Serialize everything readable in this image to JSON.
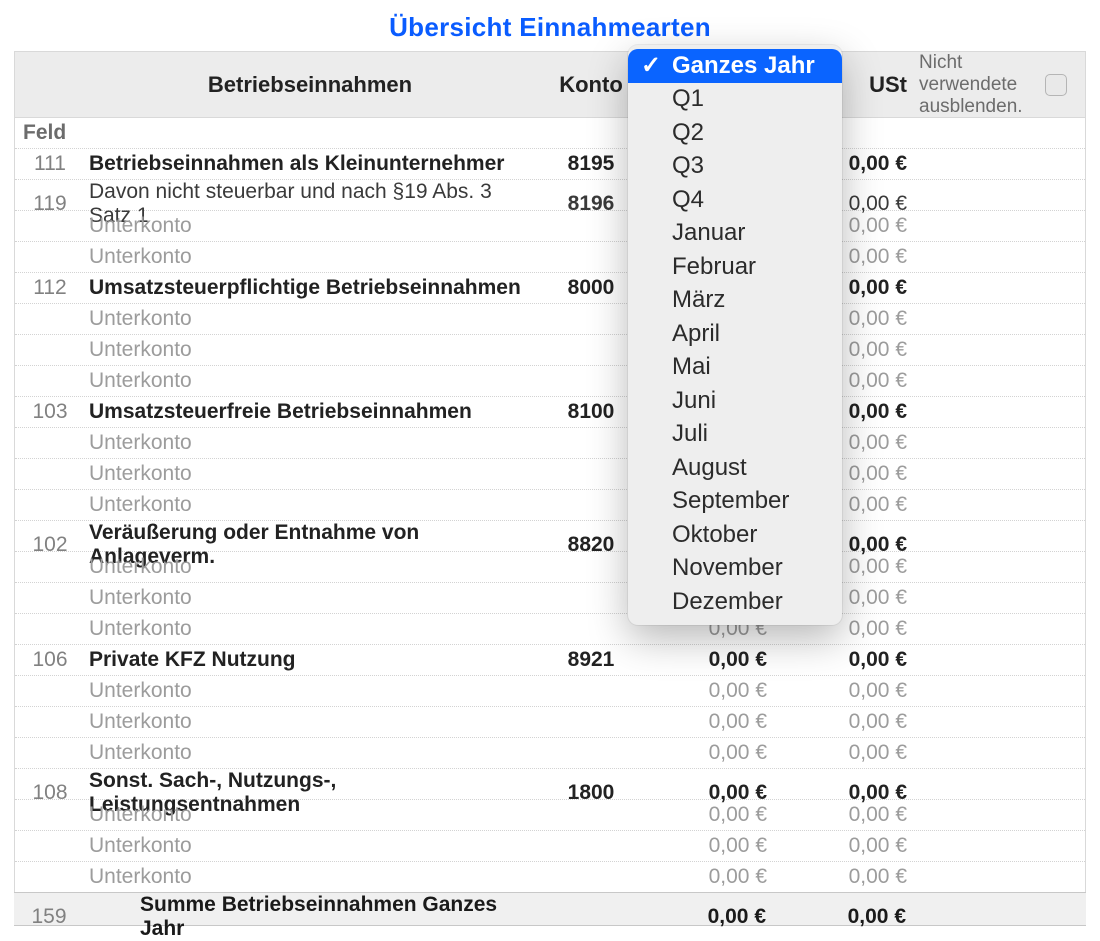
{
  "title": "Übersicht Einnahmearten",
  "header": {
    "label": "Betriebseinnahmen",
    "account": "Konto",
    "ust": "USt",
    "hide_unused_text": "Nicht verwendete ausblenden.",
    "hide_unused_checked": false
  },
  "feld_label": "Feld",
  "colors": {
    "title": "#0a5cff",
    "header_bg": "#ececec",
    "border": "#d9d9d9",
    "row_divider": "#d3d3d3",
    "sub_text": "#9c9c9c",
    "feld_text": "#818181",
    "dropdown_bg": "#eeeeee",
    "dropdown_selected_bg": "#0a64ff",
    "dropdown_selected_fg": "#ffffff"
  },
  "dropdown": {
    "selected_index": 0,
    "items": [
      "Ganzes Jahr",
      "Q1",
      "Q2",
      "Q3",
      "Q4",
      "Januar",
      "Februar",
      "März",
      "April",
      "Mai",
      "Juni",
      "Juli",
      "August",
      "September",
      "Oktober",
      "November",
      "Dezember"
    ]
  },
  "rows": [
    {
      "type": "main",
      "feld": "111",
      "label": "Betriebseinnahmen als Kleinunternehmer",
      "konto": "8195",
      "amount": "",
      "ust": "0,00 €"
    },
    {
      "type": "main_light",
      "feld": "119",
      "label": "Davon nicht steuerbar und nach §19 Abs. 3 Satz 1",
      "konto": "8196",
      "amount": "",
      "ust": "0,00 €"
    },
    {
      "type": "sub",
      "feld": "",
      "label": "Unterkonto",
      "konto": "",
      "amount": "",
      "ust": "0,00 €"
    },
    {
      "type": "sub",
      "feld": "",
      "label": "Unterkonto",
      "konto": "",
      "amount": "",
      "ust": "0,00 €"
    },
    {
      "type": "main",
      "feld": "112",
      "label": "Umsatzsteuerpflichtige Betriebseinnahmen",
      "konto": "8000",
      "amount": "",
      "ust": "0,00 €"
    },
    {
      "type": "sub",
      "feld": "",
      "label": "Unterkonto",
      "konto": "",
      "amount": "",
      "ust": "0,00 €"
    },
    {
      "type": "sub",
      "feld": "",
      "label": "Unterkonto",
      "konto": "",
      "amount": "",
      "ust": "0,00 €"
    },
    {
      "type": "sub",
      "feld": "",
      "label": "Unterkonto",
      "konto": "",
      "amount": "",
      "ust": "0,00 €"
    },
    {
      "type": "main",
      "feld": "103",
      "label": "Umsatzsteuerfreie Betriebseinnahmen",
      "konto": "8100",
      "amount": "",
      "ust": "0,00 €"
    },
    {
      "type": "sub",
      "feld": "",
      "label": "Unterkonto",
      "konto": "",
      "amount": "",
      "ust": "0,00 €"
    },
    {
      "type": "sub",
      "feld": "",
      "label": "Unterkonto",
      "konto": "",
      "amount": "",
      "ust": "0,00 €"
    },
    {
      "type": "sub",
      "feld": "",
      "label": "Unterkonto",
      "konto": "",
      "amount": "",
      "ust": "0,00 €"
    },
    {
      "type": "main",
      "feld": "102",
      "label": "Veräußerung oder Entnahme von Anlageverm.",
      "konto": "8820",
      "amount": "",
      "ust": "0,00 €"
    },
    {
      "type": "sub",
      "feld": "",
      "label": "Unterkonto",
      "konto": "",
      "amount": "",
      "ust": "0,00 €"
    },
    {
      "type": "sub",
      "feld": "",
      "label": "Unterkonto",
      "konto": "",
      "amount": "",
      "ust": "0,00 €"
    },
    {
      "type": "sub",
      "feld": "",
      "label": "Unterkonto",
      "konto": "",
      "amount": "0,00 €",
      "ust": "0,00 €"
    },
    {
      "type": "main",
      "feld": "106",
      "label": "Private KFZ Nutzung",
      "konto": "8921",
      "amount": "0,00 €",
      "ust": "0,00 €"
    },
    {
      "type": "sub",
      "feld": "",
      "label": "Unterkonto",
      "konto": "",
      "amount": "0,00 €",
      "ust": "0,00 €"
    },
    {
      "type": "sub",
      "feld": "",
      "label": "Unterkonto",
      "konto": "",
      "amount": "0,00 €",
      "ust": "0,00 €"
    },
    {
      "type": "sub",
      "feld": "",
      "label": "Unterkonto",
      "konto": "",
      "amount": "0,00 €",
      "ust": "0,00 €"
    },
    {
      "type": "main",
      "feld": "108",
      "label": "Sonst. Sach-, Nutzungs-, Leistungsentnahmen",
      "konto": "1800",
      "amount": "0,00 €",
      "ust": "0,00 €"
    },
    {
      "type": "sub",
      "feld": "",
      "label": "Unterkonto",
      "konto": "",
      "amount": "0,00 €",
      "ust": "0,00 €"
    },
    {
      "type": "sub",
      "feld": "",
      "label": "Unterkonto",
      "konto": "",
      "amount": "0,00 €",
      "ust": "0,00 €"
    },
    {
      "type": "sub",
      "feld": "",
      "label": "Unterkonto",
      "konto": "",
      "amount": "0,00 €",
      "ust": "0,00 €"
    }
  ],
  "sum": {
    "feld": "159",
    "label": "Summe Betriebseinnahmen Ganzes Jahr",
    "amount": "0,00 €",
    "ust": "0,00 €"
  }
}
